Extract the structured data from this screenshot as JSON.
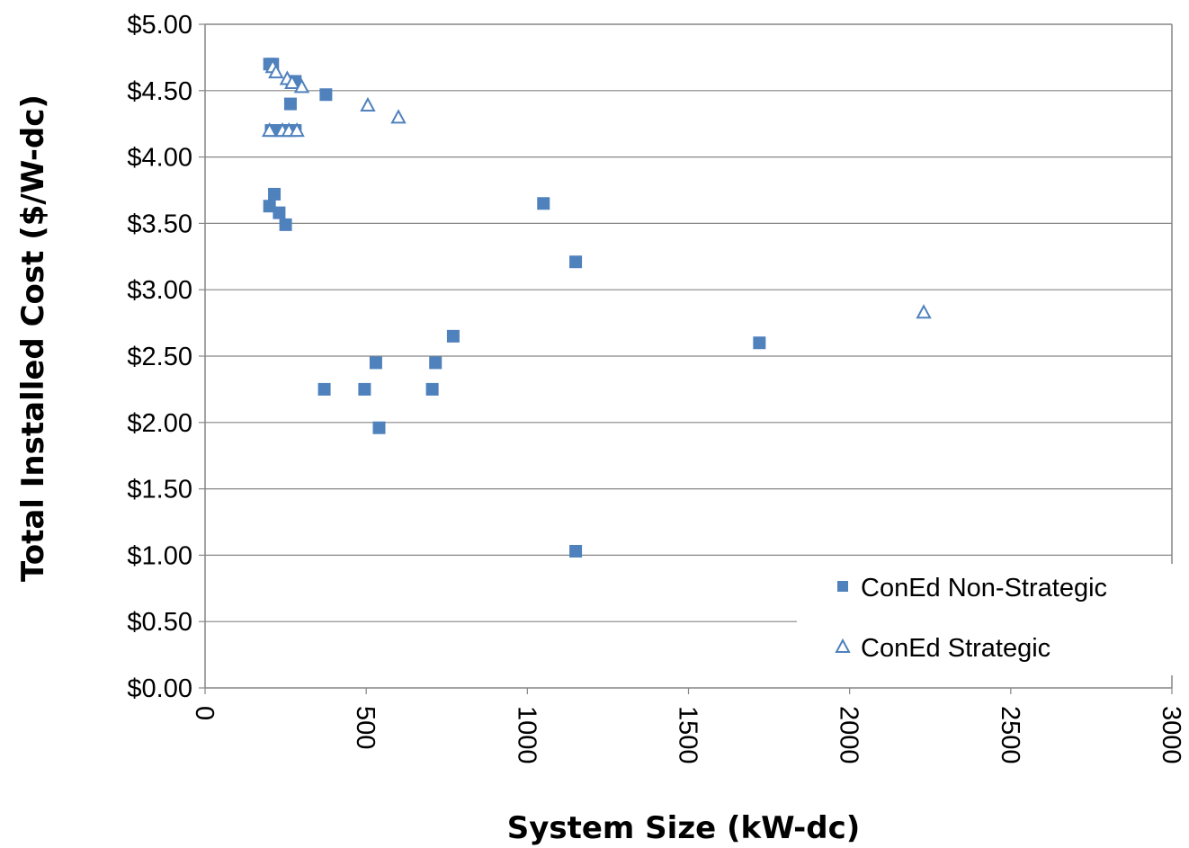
{
  "chart_data": {
    "type": "scatter",
    "xlabel": "System Size (kW-dc)",
    "ylabel": "Total Installed Cost ($/W-dc)",
    "xlim": [
      0,
      3000
    ],
    "ylim": [
      0,
      5
    ],
    "x_ticks": [
      "0",
      "500",
      "1000",
      "1500",
      "2000",
      "2500",
      "3000"
    ],
    "y_ticks": [
      "$0.00",
      "$0.50",
      "$1.00",
      "$1.50",
      "$2.00",
      "$2.50",
      "$3.00",
      "$3.50",
      "$4.00",
      "$4.50",
      "$5.00"
    ],
    "grid": "horizontal",
    "legend_position": "bottom-right",
    "series": [
      {
        "name": "ConEd Non-Strategic",
        "marker": "filled-square",
        "color": "#4F81BD",
        "points": [
          [
            200,
            4.7
          ],
          [
            210,
            4.7
          ],
          [
            205,
            4.2
          ],
          [
            215,
            4.2
          ],
          [
            225,
            4.2
          ],
          [
            240,
            4.2
          ],
          [
            255,
            4.2
          ],
          [
            270,
            4.2
          ],
          [
            280,
            4.2
          ],
          [
            265,
            4.4
          ],
          [
            270,
            4.57
          ],
          [
            280,
            4.57
          ],
          [
            375,
            4.47
          ],
          [
            200,
            3.63
          ],
          [
            215,
            3.72
          ],
          [
            230,
            3.58
          ],
          [
            250,
            3.49
          ],
          [
            370,
            2.25
          ],
          [
            495,
            2.25
          ],
          [
            530,
            2.45
          ],
          [
            540,
            1.96
          ],
          [
            705,
            2.25
          ],
          [
            715,
            2.45
          ],
          [
            770,
            2.65
          ],
          [
            1050,
            3.65
          ],
          [
            1150,
            3.21
          ],
          [
            1150,
            1.03
          ],
          [
            1720,
            2.6
          ]
        ]
      },
      {
        "name": "ConEd Strategic",
        "marker": "open-triangle",
        "color": "#4F81BD",
        "points": [
          [
            210,
            4.68
          ],
          [
            220,
            4.64
          ],
          [
            255,
            4.59
          ],
          [
            270,
            4.56
          ],
          [
            300,
            4.53
          ],
          [
            505,
            4.39
          ],
          [
            600,
            4.3
          ],
          [
            2230,
            2.83
          ],
          [
            200,
            4.2
          ],
          [
            240,
            4.2
          ],
          [
            260,
            4.2
          ],
          [
            285,
            4.2
          ]
        ]
      }
    ]
  }
}
